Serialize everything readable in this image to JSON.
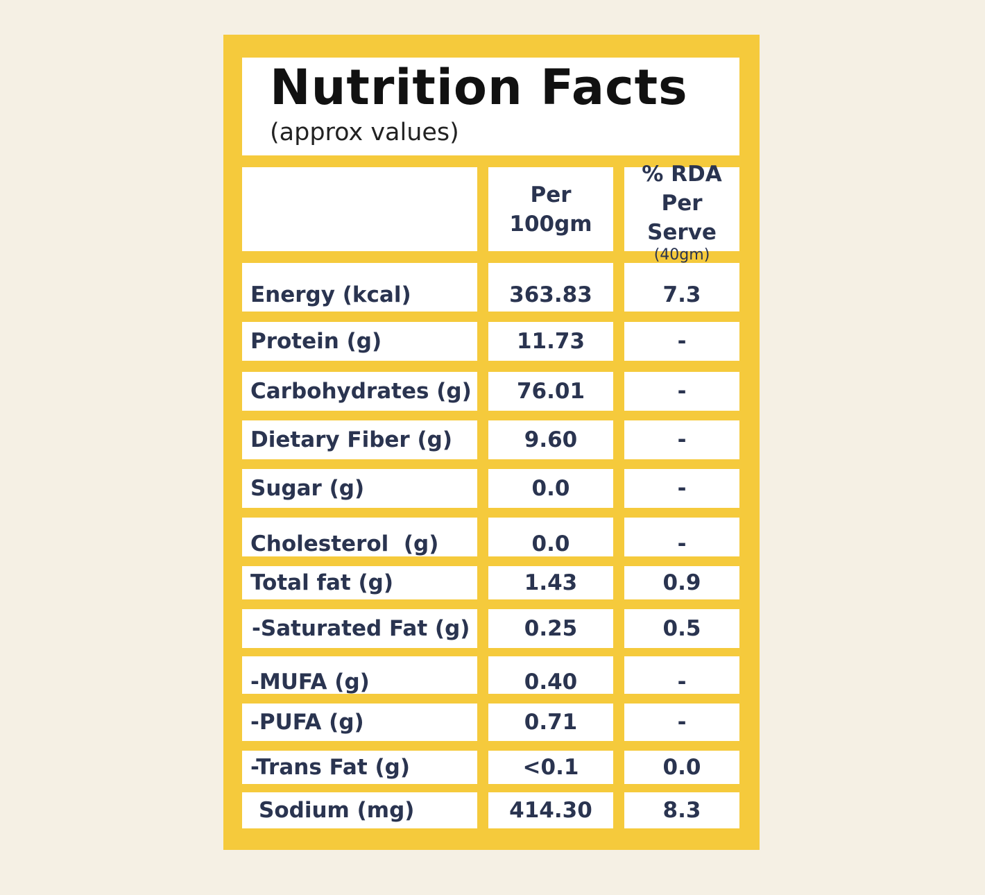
{
  "title": "Nutrition Facts",
  "subtitle": "(approx values)",
  "header": {
    "col2_line1": "Per",
    "col2_line2": "100gm",
    "col3_line1": "% RDA",
    "col3_line2": "Per Serve",
    "col3_line3": "(40gm)"
  },
  "rows": [
    {
      "label": "Energy (kcal)",
      "per100": "363.83",
      "rda": "7.3"
    },
    {
      "label": "Protein (g)",
      "per100": "11.73",
      "rda": "-"
    },
    {
      "label": "Carbohydrates (g)",
      "per100": "76.01",
      "rda": "-"
    },
    {
      "label": "Dietary Fiber (g)",
      "per100": "9.60",
      "rda": "-"
    },
    {
      "label": "Sugar (g)",
      "per100": "0.0",
      "rda": "-"
    },
    {
      "label": "Cholesterol  (g)",
      "per100": "0.0",
      "rda": "-"
    },
    {
      "label": "Total fat (g)",
      "per100": "1.43",
      "rda": "0.9"
    },
    {
      "label": "-Saturated Fat (g)",
      "per100": "0.25",
      "rda": "0.5"
    },
    {
      "label": "-MUFA (g)",
      "per100": "0.40",
      "rda": "-"
    },
    {
      "label": "-PUFA (g)",
      "per100": "0.71",
      "rda": "-"
    },
    {
      "label": "-Trans Fat (g)",
      "per100": "<0.1",
      "rda": "0.0"
    },
    {
      "label": "Sodium (mg)",
      "per100": "414.30",
      "rda": "8.3"
    }
  ],
  "colors": {
    "background": "#f5f0e4",
    "panel": "#f5ca3c",
    "text": "#2a3450"
  }
}
